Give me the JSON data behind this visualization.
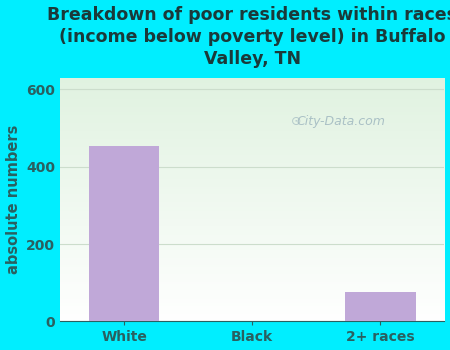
{
  "title": "Breakdown of poor residents within races\n(income below poverty level) in Buffalo\nValley, TN",
  "categories": [
    "White",
    "Black",
    "2+ races"
  ],
  "values": [
    453,
    2,
    75
  ],
  "bar_color": "#c0a8d8",
  "ylabel": "absolute numbers",
  "ylim": [
    0,
    630
  ],
  "yticks": [
    0,
    200,
    400,
    600
  ],
  "fig_bg_color": "#00eeff",
  "title_color": "#1a3a3a",
  "axis_label_color": "#2a6060",
  "tick_label_color": "#2a6060",
  "grid_color": "#ccddcc",
  "watermark": "City-Data.com",
  "title_fontsize": 12.5,
  "label_fontsize": 10.5,
  "tick_fontsize": 10
}
